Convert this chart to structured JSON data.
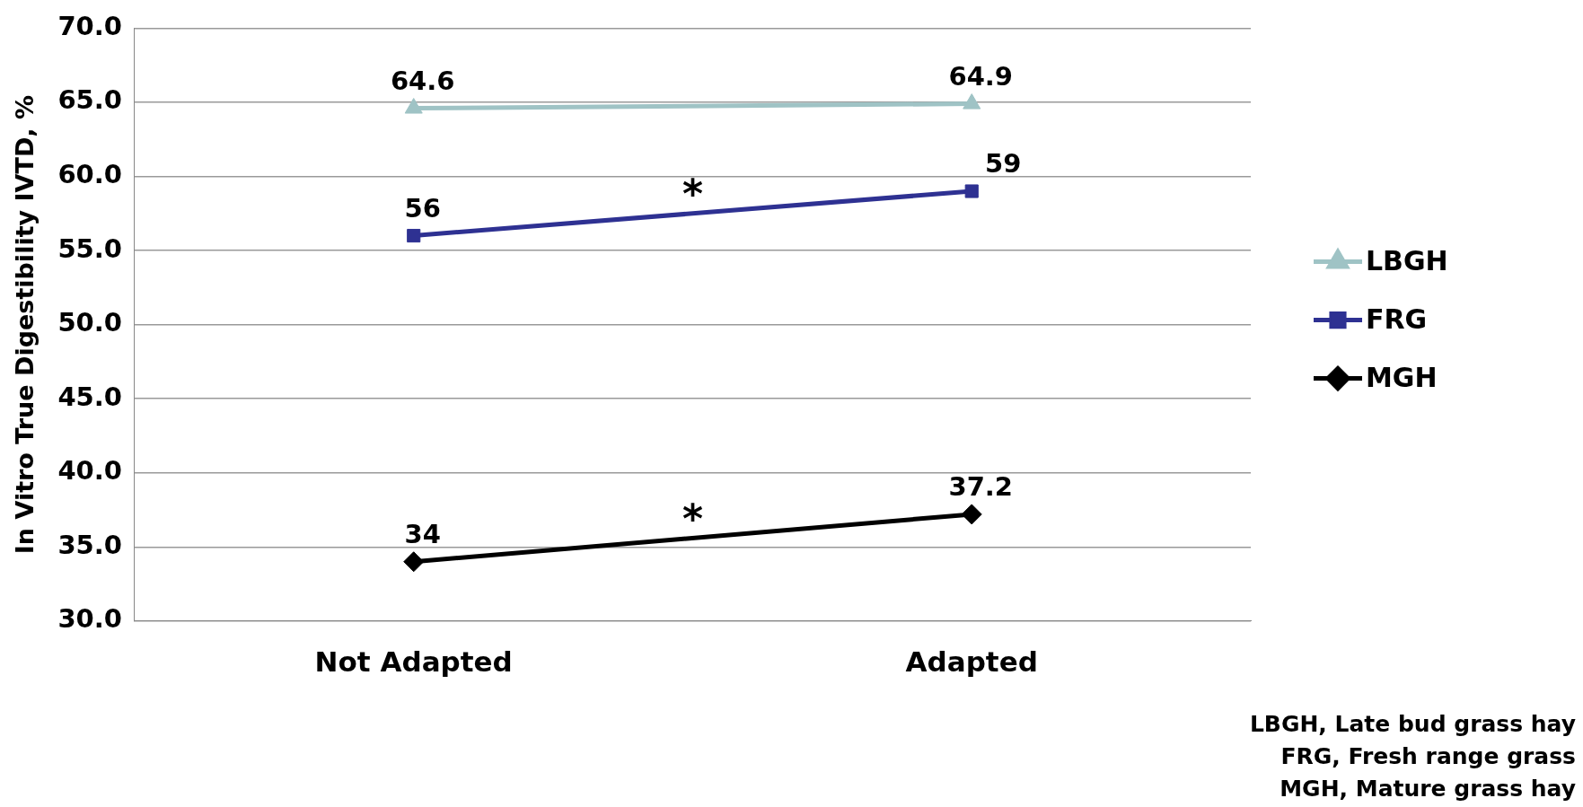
{
  "chart_data": {
    "type": "line",
    "ylabel": "In Vitro True Digestibility IVTD, %",
    "categories": [
      "Not Adapted",
      "Adapted"
    ],
    "series": [
      {
        "name": "LBGH",
        "color": "#9fc3c5",
        "marker": "triangle",
        "values": [
          64.6,
          64.9
        ],
        "value_labels": [
          "64.6",
          "64.9"
        ]
      },
      {
        "name": "FRG",
        "color": "#2e3192",
        "marker": "square",
        "values": [
          56,
          59
        ],
        "value_labels": [
          "56",
          "59"
        ]
      },
      {
        "name": "MGH",
        "color": "#000000",
        "marker": "diamond",
        "values": [
          34,
          37.2
        ],
        "value_labels": [
          "34",
          "37.2"
        ]
      }
    ],
    "ylim": [
      30,
      70
    ],
    "yticks": [
      {
        "value": 30,
        "label": "30.0"
      },
      {
        "value": 35,
        "label": "35.0"
      },
      {
        "value": 40,
        "label": "40.0"
      },
      {
        "value": 45,
        "label": "45.0"
      },
      {
        "value": 50,
        "label": "50.0"
      },
      {
        "value": 55,
        "label": "55.0"
      },
      {
        "value": 60,
        "label": "60.0"
      },
      {
        "value": 65,
        "label": "65.0"
      },
      {
        "value": 70,
        "label": "70.0"
      }
    ],
    "grid": "y",
    "legend": "right",
    "line_style": "solid",
    "annotations": [
      "*",
      "*",
      "LBGH, Late bud grass hay",
      "FRG, Fresh range grass",
      "MGH, Mature grass hay"
    ]
  }
}
